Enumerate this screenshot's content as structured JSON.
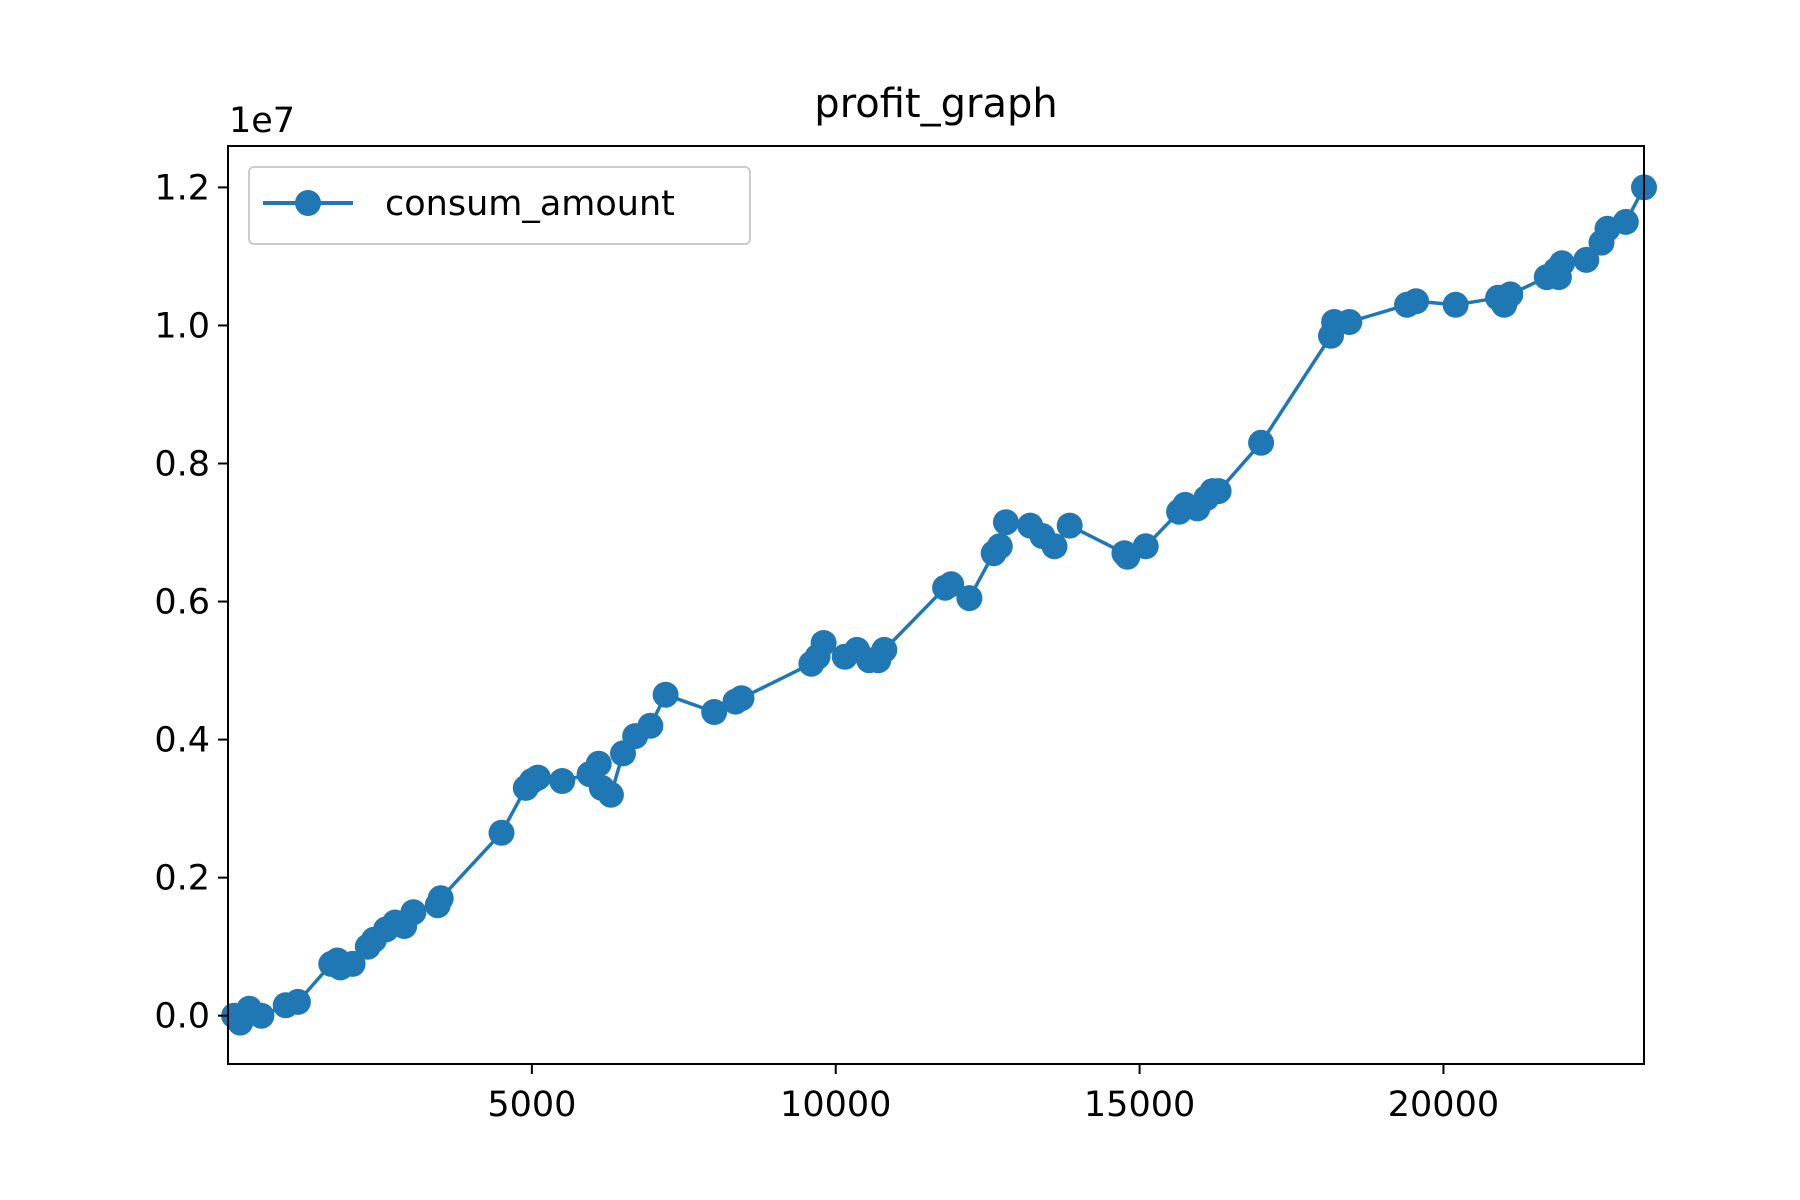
{
  "chart_data": {
    "type": "line",
    "title": "profit_graph",
    "xlabel": "",
    "ylabel": "",
    "offset_label": "1e7",
    "xlim": [
      0,
      23300
    ],
    "ylim": [
      -0.07,
      1.26
    ],
    "x_ticks": [
      5000,
      10000,
      15000,
      20000
    ],
    "x_tick_labels": [
      "5000",
      "10000",
      "15000",
      "20000"
    ],
    "y_ticks": [
      0.0,
      0.2,
      0.4,
      0.6,
      0.8,
      1.0,
      1.2
    ],
    "y_tick_labels": [
      "0.0",
      "0.2",
      "0.4",
      "0.6",
      "0.8",
      "1.0",
      "1.2"
    ],
    "grid": false,
    "legend_position": "upper-left",
    "series": [
      {
        "name": "consum_amount",
        "color": "#1f77b4",
        "marker": "circle",
        "x": [
          100,
          200,
          350,
          550,
          950,
          1150,
          1700,
          1800,
          1850,
          2050,
          2300,
          2400,
          2600,
          2750,
          2900,
          3050,
          3450,
          3500,
          4500,
          4900,
          5000,
          5100,
          5500,
          5950,
          6100,
          6150,
          6300,
          6500,
          6700,
          6950,
          7200,
          8000,
          8350,
          8450,
          9600,
          9700,
          9800,
          10150,
          10350,
          10550,
          10700,
          10800,
          11800,
          11900,
          12200,
          12600,
          12700,
          12800,
          13200,
          13400,
          13600,
          13850,
          14750,
          14800,
          15100,
          15650,
          15750,
          15950,
          16100,
          16200,
          16300,
          17000,
          18150,
          18200,
          18450,
          19400,
          19550,
          20200,
          20900,
          21000,
          21100,
          21700,
          21850,
          21900,
          21950,
          22350,
          22600,
          22700,
          23000,
          23300
        ],
        "y": [
          0.0,
          -0.01,
          0.01,
          0.0,
          0.015,
          0.02,
          0.075,
          0.08,
          0.07,
          0.075,
          0.1,
          0.11,
          0.125,
          0.135,
          0.13,
          0.15,
          0.16,
          0.17,
          0.265,
          0.33,
          0.34,
          0.345,
          0.34,
          0.35,
          0.365,
          0.33,
          0.32,
          0.38,
          0.405,
          0.42,
          0.465,
          0.44,
          0.455,
          0.46,
          0.51,
          0.52,
          0.54,
          0.52,
          0.53,
          0.515,
          0.515,
          0.53,
          0.62,
          0.625,
          0.605,
          0.67,
          0.68,
          0.715,
          0.71,
          0.695,
          0.68,
          0.71,
          0.67,
          0.665,
          0.68,
          0.73,
          0.74,
          0.735,
          0.75,
          0.76,
          0.76,
          0.83,
          0.985,
          1.005,
          1.005,
          1.03,
          1.035,
          1.03,
          1.04,
          1.03,
          1.045,
          1.07,
          1.08,
          1.07,
          1.09,
          1.095,
          1.12,
          1.14,
          1.15,
          1.2
        ]
      }
    ]
  }
}
